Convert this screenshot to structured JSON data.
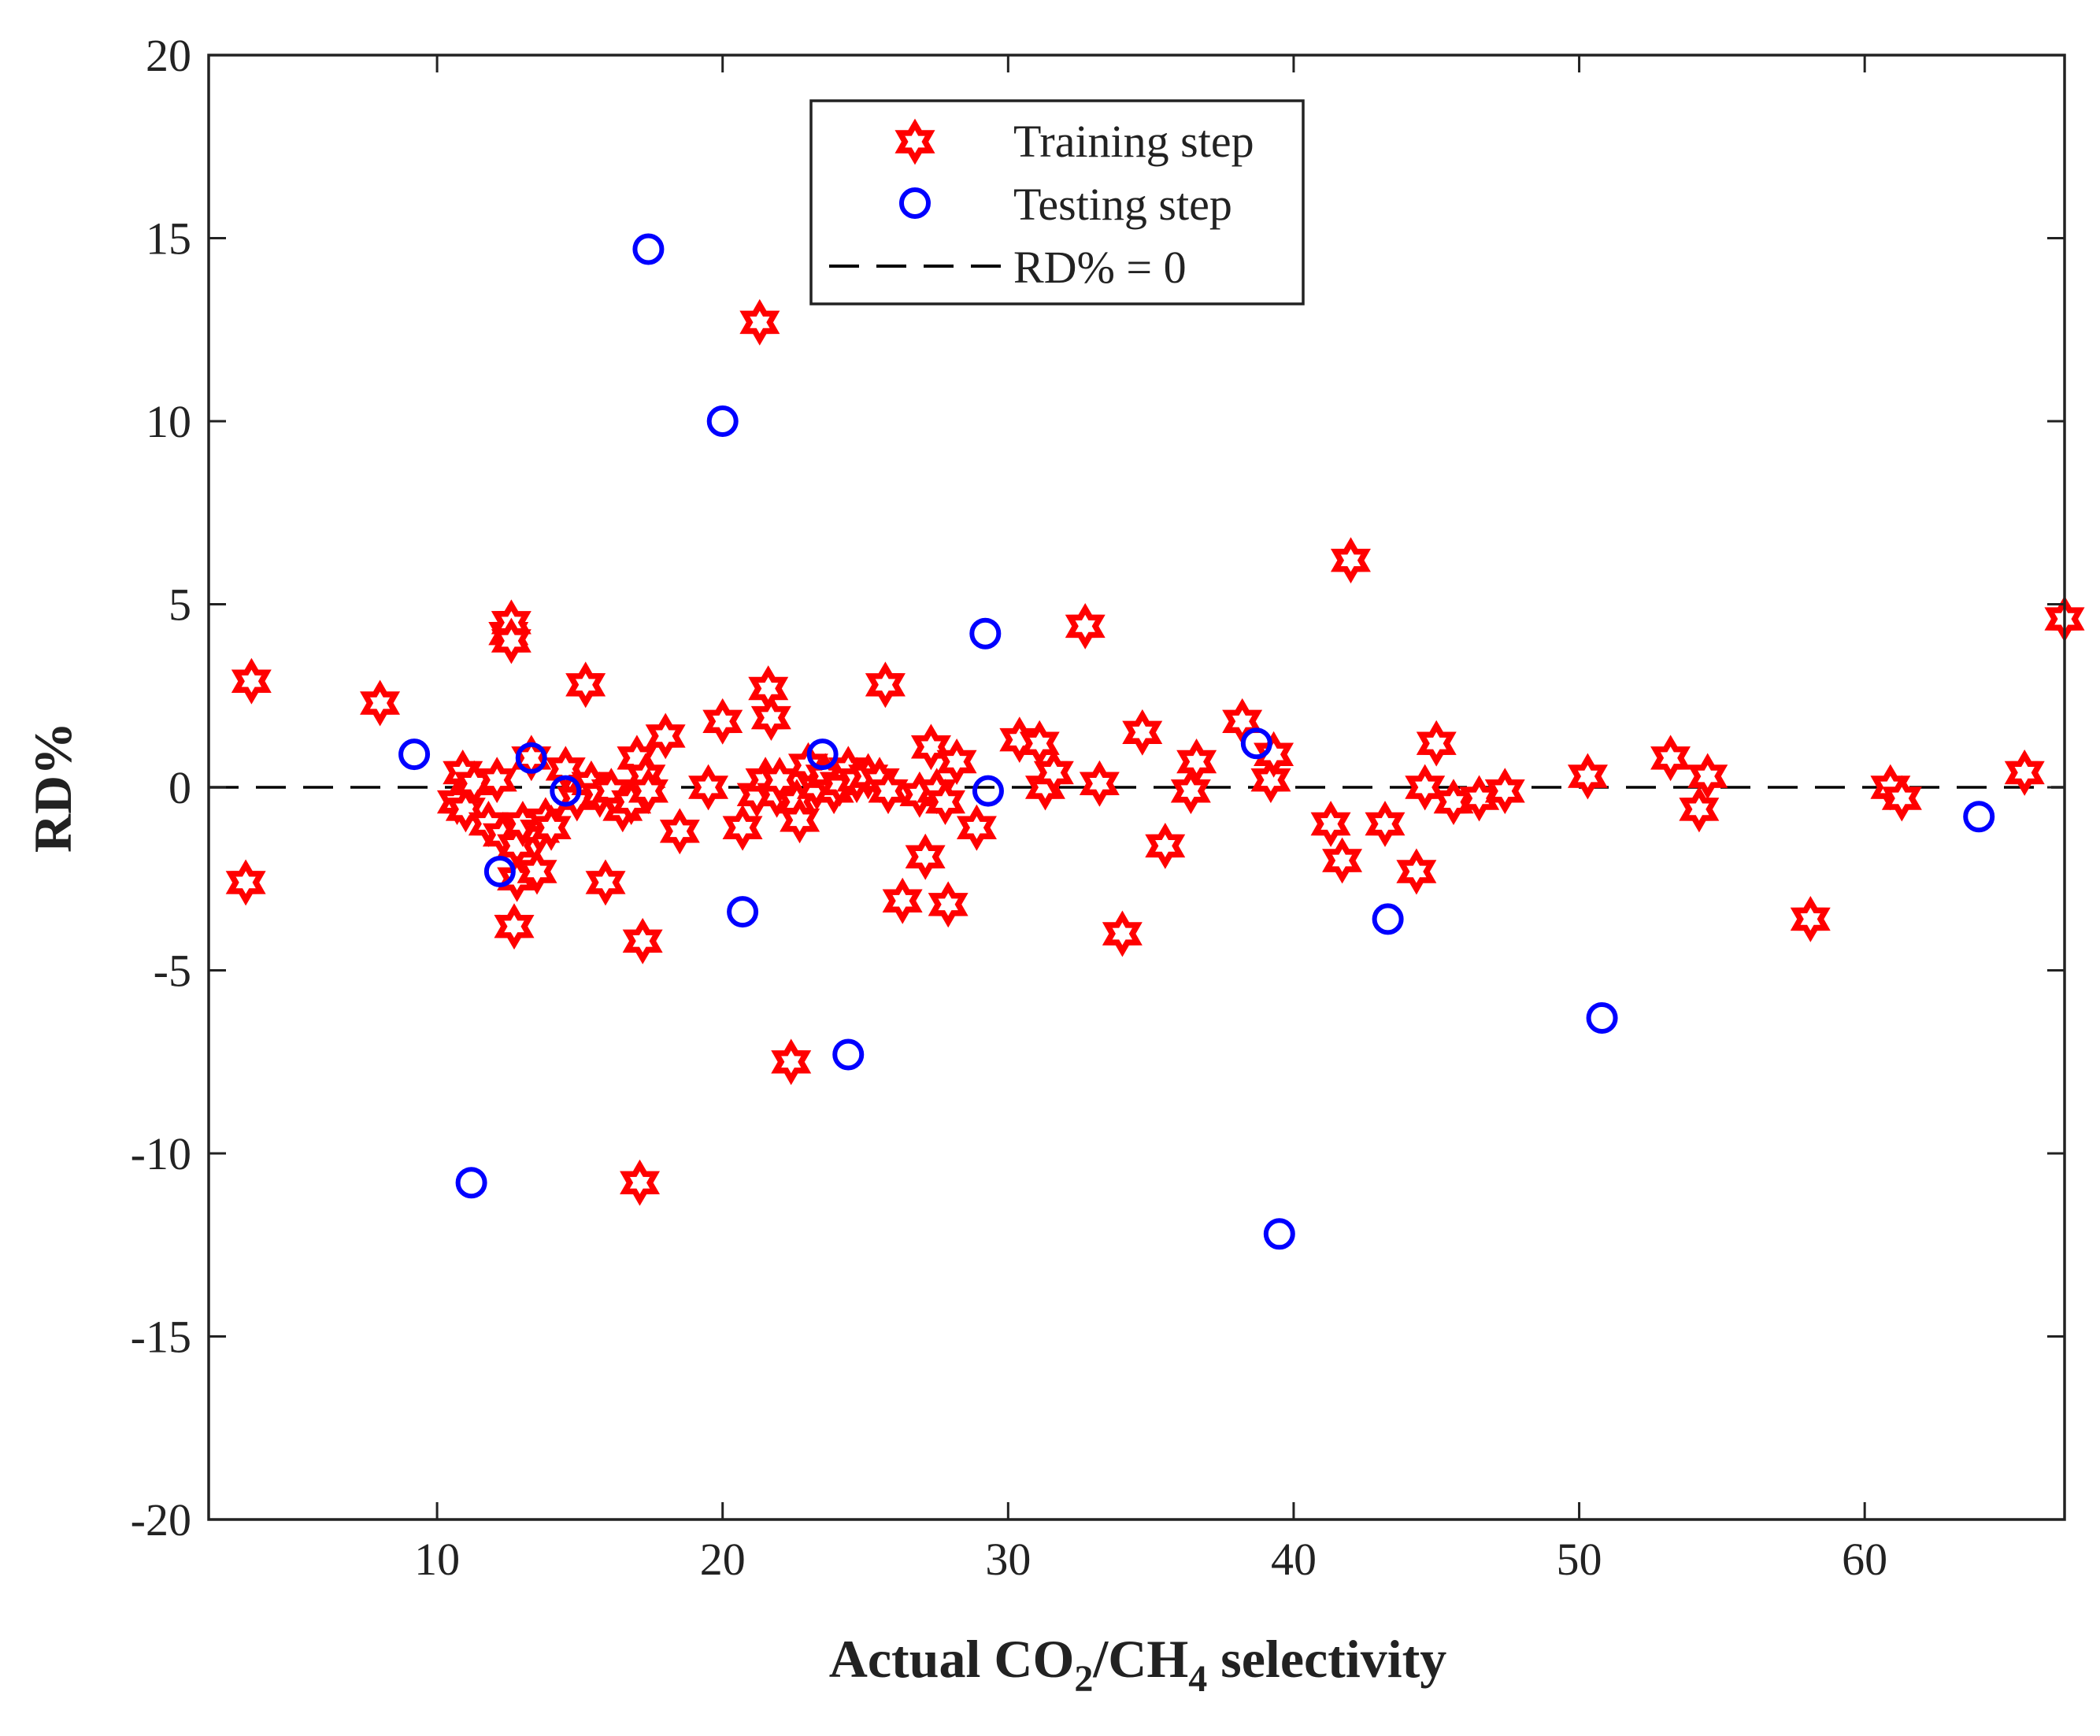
{
  "chart_data": {
    "type": "scatter",
    "title": "",
    "xlabel": {
      "parts": [
        "Actual CO",
        "2",
        "/CH",
        "4",
        " selectivity"
      ]
    },
    "ylabel": "RD%",
    "xlim": [
      2,
      67
    ],
    "ylim": [
      -20,
      20
    ],
    "xticks": [
      10,
      20,
      30,
      40,
      50,
      60
    ],
    "yticks": [
      -20,
      -15,
      -10,
      -5,
      0,
      5,
      10,
      15,
      20
    ],
    "grid": false,
    "legend_position": "top-center",
    "reference_line": {
      "name": "RD% = 0",
      "y": 0,
      "color": "#000000",
      "style": "dashed"
    },
    "series": [
      {
        "name": "Training step",
        "marker": "hexagram",
        "color": "#ff0000",
        "points": [
          [
            3.3,
            -2.6
          ],
          [
            3.5,
            2.9
          ],
          [
            8.0,
            2.3
          ],
          [
            10.7,
            -0.4
          ],
          [
            10.9,
            0.4
          ],
          [
            11.0,
            -0.6
          ],
          [
            11.3,
            0.1
          ],
          [
            11.8,
            -1.0
          ],
          [
            12.1,
            0.2
          ],
          [
            12.3,
            -1.3
          ],
          [
            12.5,
            4.2
          ],
          [
            12.6,
            4.5
          ],
          [
            12.6,
            4.0
          ],
          [
            12.7,
            -3.8
          ],
          [
            12.8,
            -1.6
          ],
          [
            12.8,
            -2.5
          ],
          [
            13.0,
            -1.0
          ],
          [
            13.3,
            0.8
          ],
          [
            13.5,
            -2.3
          ],
          [
            13.6,
            -1.2
          ],
          [
            13.8,
            -0.9
          ],
          [
            14.0,
            -1.1
          ],
          [
            14.5,
            0.5
          ],
          [
            14.9,
            -0.3
          ],
          [
            15.2,
            2.8
          ],
          [
            15.4,
            0.1
          ],
          [
            15.7,
            -0.2
          ],
          [
            15.9,
            -2.6
          ],
          [
            16.1,
            -0.1
          ],
          [
            16.5,
            -0.6
          ],
          [
            16.8,
            -0.4
          ],
          [
            17.0,
            0.8
          ],
          [
            17.1,
            -10.8
          ],
          [
            17.2,
            -4.2
          ],
          [
            17.3,
            0.3
          ],
          [
            17.4,
            -0.1
          ],
          [
            18.0,
            1.4
          ],
          [
            18.5,
            -1.2
          ],
          [
            19.5,
            0.0
          ],
          [
            20.0,
            1.8
          ],
          [
            20.7,
            -1.1
          ],
          [
            21.2,
            -0.2
          ],
          [
            21.3,
            12.7
          ],
          [
            21.5,
            0.2
          ],
          [
            21.6,
            2.7
          ],
          [
            21.7,
            1.9
          ],
          [
            21.9,
            -0.2
          ],
          [
            22.0,
            0.2
          ],
          [
            22.4,
            -7.5
          ],
          [
            22.6,
            -0.4
          ],
          [
            22.7,
            -0.9
          ],
          [
            23.0,
            0.6
          ],
          [
            23.3,
            0.0
          ],
          [
            23.6,
            0.3
          ],
          [
            23.9,
            -0.1
          ],
          [
            24.1,
            0.1
          ],
          [
            24.4,
            0.5
          ],
          [
            24.7,
            0.2
          ],
          [
            25.1,
            0.3
          ],
          [
            25.5,
            0.2
          ],
          [
            25.7,
            2.8
          ],
          [
            25.8,
            -0.1
          ],
          [
            26.3,
            -3.1
          ],
          [
            26.9,
            -0.2
          ],
          [
            27.1,
            -1.9
          ],
          [
            27.3,
            1.1
          ],
          [
            27.5,
            -0.1
          ],
          [
            27.8,
            -0.4
          ],
          [
            27.9,
            -3.2
          ],
          [
            28.2,
            0.7
          ],
          [
            28.9,
            -1.1
          ],
          [
            30.4,
            1.3
          ],
          [
            31.1,
            1.2
          ],
          [
            31.3,
            0.0
          ],
          [
            31.6,
            0.4
          ],
          [
            32.7,
            4.4
          ],
          [
            33.2,
            0.1
          ],
          [
            34.0,
            -4.0
          ],
          [
            34.7,
            1.5
          ],
          [
            35.5,
            -1.6
          ],
          [
            36.4,
            -0.1
          ],
          [
            36.6,
            0.7
          ],
          [
            38.2,
            1.8
          ],
          [
            39.2,
            0.2
          ],
          [
            39.3,
            0.9
          ],
          [
            41.3,
            -1.0
          ],
          [
            41.7,
            -2.0
          ],
          [
            42.0,
            6.2
          ],
          [
            43.2,
            -1.0
          ],
          [
            44.3,
            -2.3
          ],
          [
            44.6,
            0.0
          ],
          [
            45.0,
            1.2
          ],
          [
            45.6,
            -0.4
          ],
          [
            46.5,
            -0.3
          ],
          [
            47.4,
            -0.1
          ],
          [
            50.3,
            0.3
          ],
          [
            53.2,
            0.8
          ],
          [
            54.2,
            -0.6
          ],
          [
            54.5,
            0.3
          ],
          [
            58.1,
            -3.6
          ],
          [
            60.9,
            0.0
          ],
          [
            61.3,
            -0.3
          ],
          [
            65.6,
            0.4
          ],
          [
            67.0,
            4.6
          ]
        ]
      },
      {
        "name": "Testing step",
        "marker": "circle",
        "color": "#0000ff",
        "points": [
          [
            9.2,
            0.9
          ],
          [
            11.2,
            -10.8
          ],
          [
            12.2,
            -2.3
          ],
          [
            13.3,
            0.8
          ],
          [
            14.5,
            -0.1
          ],
          [
            17.4,
            14.7
          ],
          [
            20.0,
            10.0
          ],
          [
            20.7,
            -3.4
          ],
          [
            23.5,
            0.9
          ],
          [
            24.4,
            -7.3
          ],
          [
            29.2,
            4.2
          ],
          [
            29.3,
            -0.1
          ],
          [
            38.7,
            1.2
          ],
          [
            39.5,
            -12.2
          ],
          [
            43.3,
            -3.6
          ],
          [
            50.8,
            -6.3
          ],
          [
            64.0,
            -0.8
          ]
        ]
      }
    ]
  }
}
